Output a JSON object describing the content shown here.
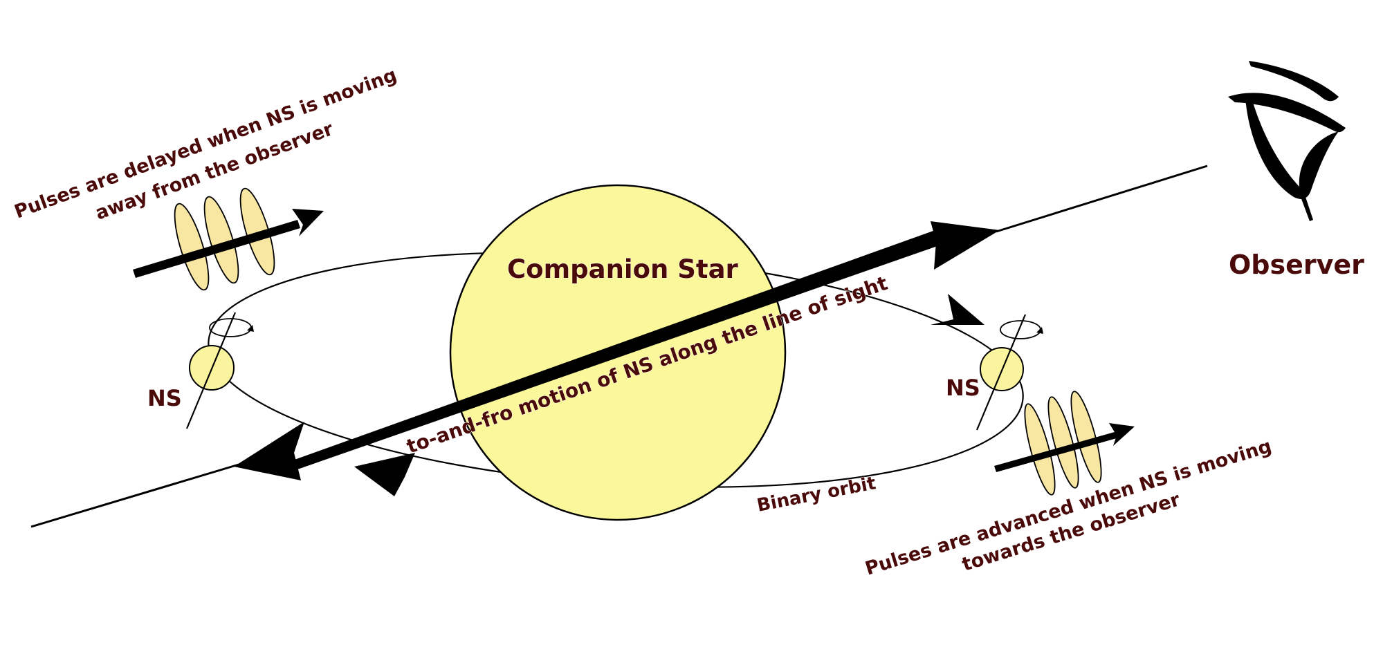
{
  "labels": {
    "companion_star": "Companion Star",
    "observer": "Observer",
    "ns_left": "NS",
    "ns_right": "NS",
    "line_of_sight": "to-and-fro motion of NS along the line of sight",
    "binary_orbit": "Binary orbit",
    "delayed_line1": "Pulses are delayed when NS is moving",
    "delayed_line2": "away from the observer",
    "advanced_line1": "Pulses are advanced when NS is moving",
    "advanced_line2": "towards  the observer"
  },
  "colors": {
    "star_fill": "#fbf79b",
    "ns_fill": "#fbf49f",
    "pulse_fill": "#f8e6a3",
    "label_text": "#4a0a0a",
    "line": "#000000"
  },
  "icons": {
    "observer": "eye-icon"
  }
}
